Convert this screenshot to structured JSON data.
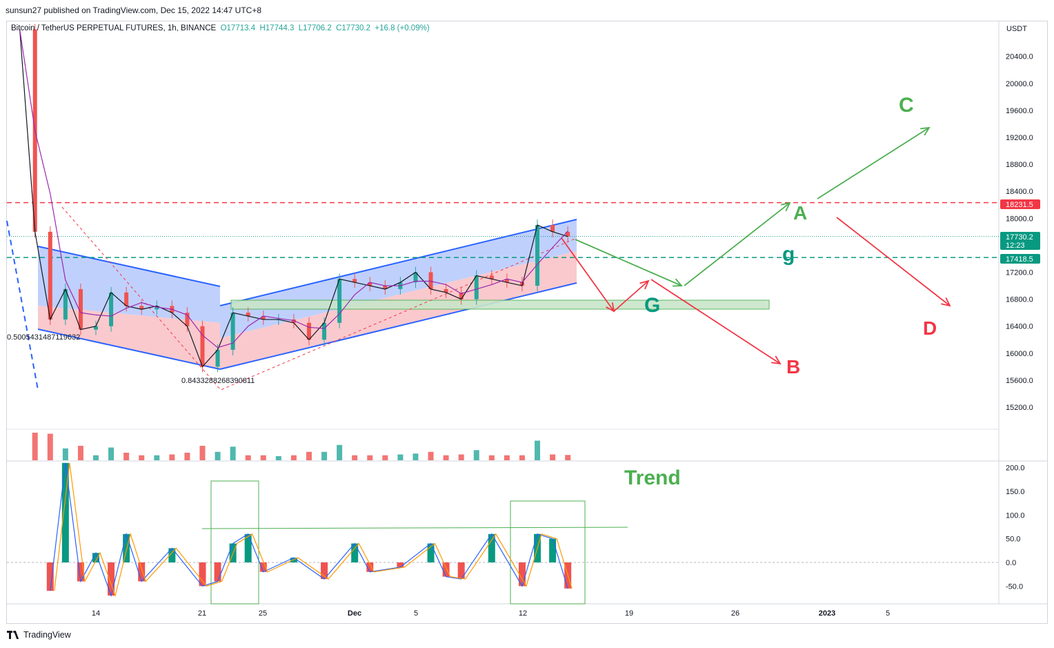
{
  "header": {
    "published": "sunsun27 published on TradingView.com, Dec 15, 2022 14:47 UTC+8",
    "symbol": "Bitcoin / TetherUS PERPETUAL FUTURES, 1h, BINANCE",
    "open": "O17713.4",
    "high": "H17744.3",
    "low": "L17706.2",
    "close": "C17730.2",
    "change": "+16.8 (+0.09%)"
  },
  "footer": {
    "brand": "TradingView"
  },
  "colors": {
    "up": "#26a69a",
    "down": "#ef5350",
    "red_line": "#f23645",
    "teal_line": "#089981",
    "green_annot": "#4caf50",
    "blue_channel": "#2962ff",
    "channel_fill": "#b5c8fb",
    "pink_fill": "#f9c0c4"
  },
  "chart_data": [
    {
      "type": "line",
      "title": "Bitcoin / TetherUS PERPETUAL FUTURES, 1h, BINANCE",
      "ylabel": "USDT",
      "ylim": [
        14900,
        20900
      ],
      "yticks": [
        "20400.0",
        "20000.0",
        "19600.0",
        "19200.0",
        "18800.0",
        "18400.0",
        "18000.0",
        "17600.0",
        "17200.0",
        "16800.0",
        "16400.0",
        "16000.0",
        "15600.0",
        "15200.0"
      ],
      "xticks": [
        "14",
        "21",
        "25",
        "Dec",
        "5",
        "12",
        "19",
        "26",
        "2023",
        "5"
      ],
      "series": [
        {
          "name": "BTCUSDT 1h close (approx.)",
          "x": [
            "Nov 09",
            "Nov 10",
            "Nov 11",
            "Nov 12",
            "Nov 13",
            "Nov 14",
            "Nov 15",
            "Nov 16",
            "Nov 17",
            "Nov 18",
            "Nov 19",
            "Nov 20",
            "Nov 21",
            "Nov 22",
            "Nov 23",
            "Nov 24",
            "Nov 25",
            "Nov 26",
            "Nov 27",
            "Nov 28",
            "Nov 29",
            "Nov 30",
            "Dec 01",
            "Dec 02",
            "Dec 03",
            "Dec 04",
            "Dec 05",
            "Dec 06",
            "Dec 07",
            "Dec 08",
            "Dec 09",
            "Dec 10",
            "Dec 11",
            "Dec 12",
            "Dec 13",
            "Dec 14",
            "Dec 15"
          ],
          "values": [
            20800,
            17800,
            16500,
            16950,
            16350,
            16400,
            16900,
            16700,
            16650,
            16700,
            16600,
            16400,
            15800,
            16050,
            16600,
            16550,
            16500,
            16500,
            16450,
            16200,
            16450,
            17100,
            17050,
            17000,
            16950,
            17050,
            17200,
            16950,
            16900,
            16800,
            17150,
            17100,
            17050,
            17000,
            17900,
            17800,
            17730.2
          ]
        }
      ],
      "price_labels": [
        {
          "label": "18231.5",
          "value": 18231.5,
          "color": "#f23645"
        },
        {
          "label": "17730.2",
          "value": 17730.2,
          "color": "#089981",
          "countdown": "12:23"
        },
        {
          "label": "17418.5",
          "value": 17418.5,
          "color": "#089981"
        }
      ],
      "horizontal_lines": [
        {
          "value": 18231.5,
          "style": "dashed",
          "color": "#f23645"
        },
        {
          "value": 17418.5,
          "style": "dashed",
          "color": "#089981"
        }
      ],
      "annotations": [
        {
          "text": "A",
          "color": "#4caf50"
        },
        {
          "text": "B",
          "color": "#f23645"
        },
        {
          "text": "C",
          "color": "#4caf50"
        },
        {
          "text": "D",
          "color": "#f23645"
        },
        {
          "text": "G",
          "color": "#089981"
        },
        {
          "text": "g",
          "color": "#089981"
        }
      ],
      "fib_labels": [
        "0.5005431487119632",
        "0.8433288268390811"
      ]
    },
    {
      "type": "bar",
      "title": "Trend",
      "ylim": [
        -88,
        213
      ],
      "yticks": [
        "200.0",
        "150.0",
        "100.0",
        "50.0",
        "0.0",
        "-50.0"
      ],
      "series": [
        {
          "name": "histogram (approx.)",
          "x": [
            "Nov 11",
            "Nov 12",
            "Nov 13",
            "Nov 14",
            "Nov 15",
            "Nov 16",
            "Nov 17",
            "Nov 19",
            "Nov 21",
            "Nov 22",
            "Nov 23",
            "Nov 24",
            "Nov 25",
            "Nov 27",
            "Nov 29",
            "Dec 01",
            "Dec 02",
            "Dec 04",
            "Dec 06",
            "Dec 07",
            "Dec 08",
            "Dec 10",
            "Dec 12",
            "Dec 13",
            "Dec 14",
            "Dec 15"
          ],
          "values": [
            -60,
            210,
            -40,
            20,
            -70,
            60,
            -40,
            30,
            -50,
            -40,
            40,
            60,
            -20,
            10,
            -35,
            40,
            -20,
            -10,
            40,
            -30,
            -35,
            60,
            -50,
            60,
            50,
            -55
          ]
        }
      ]
    }
  ]
}
